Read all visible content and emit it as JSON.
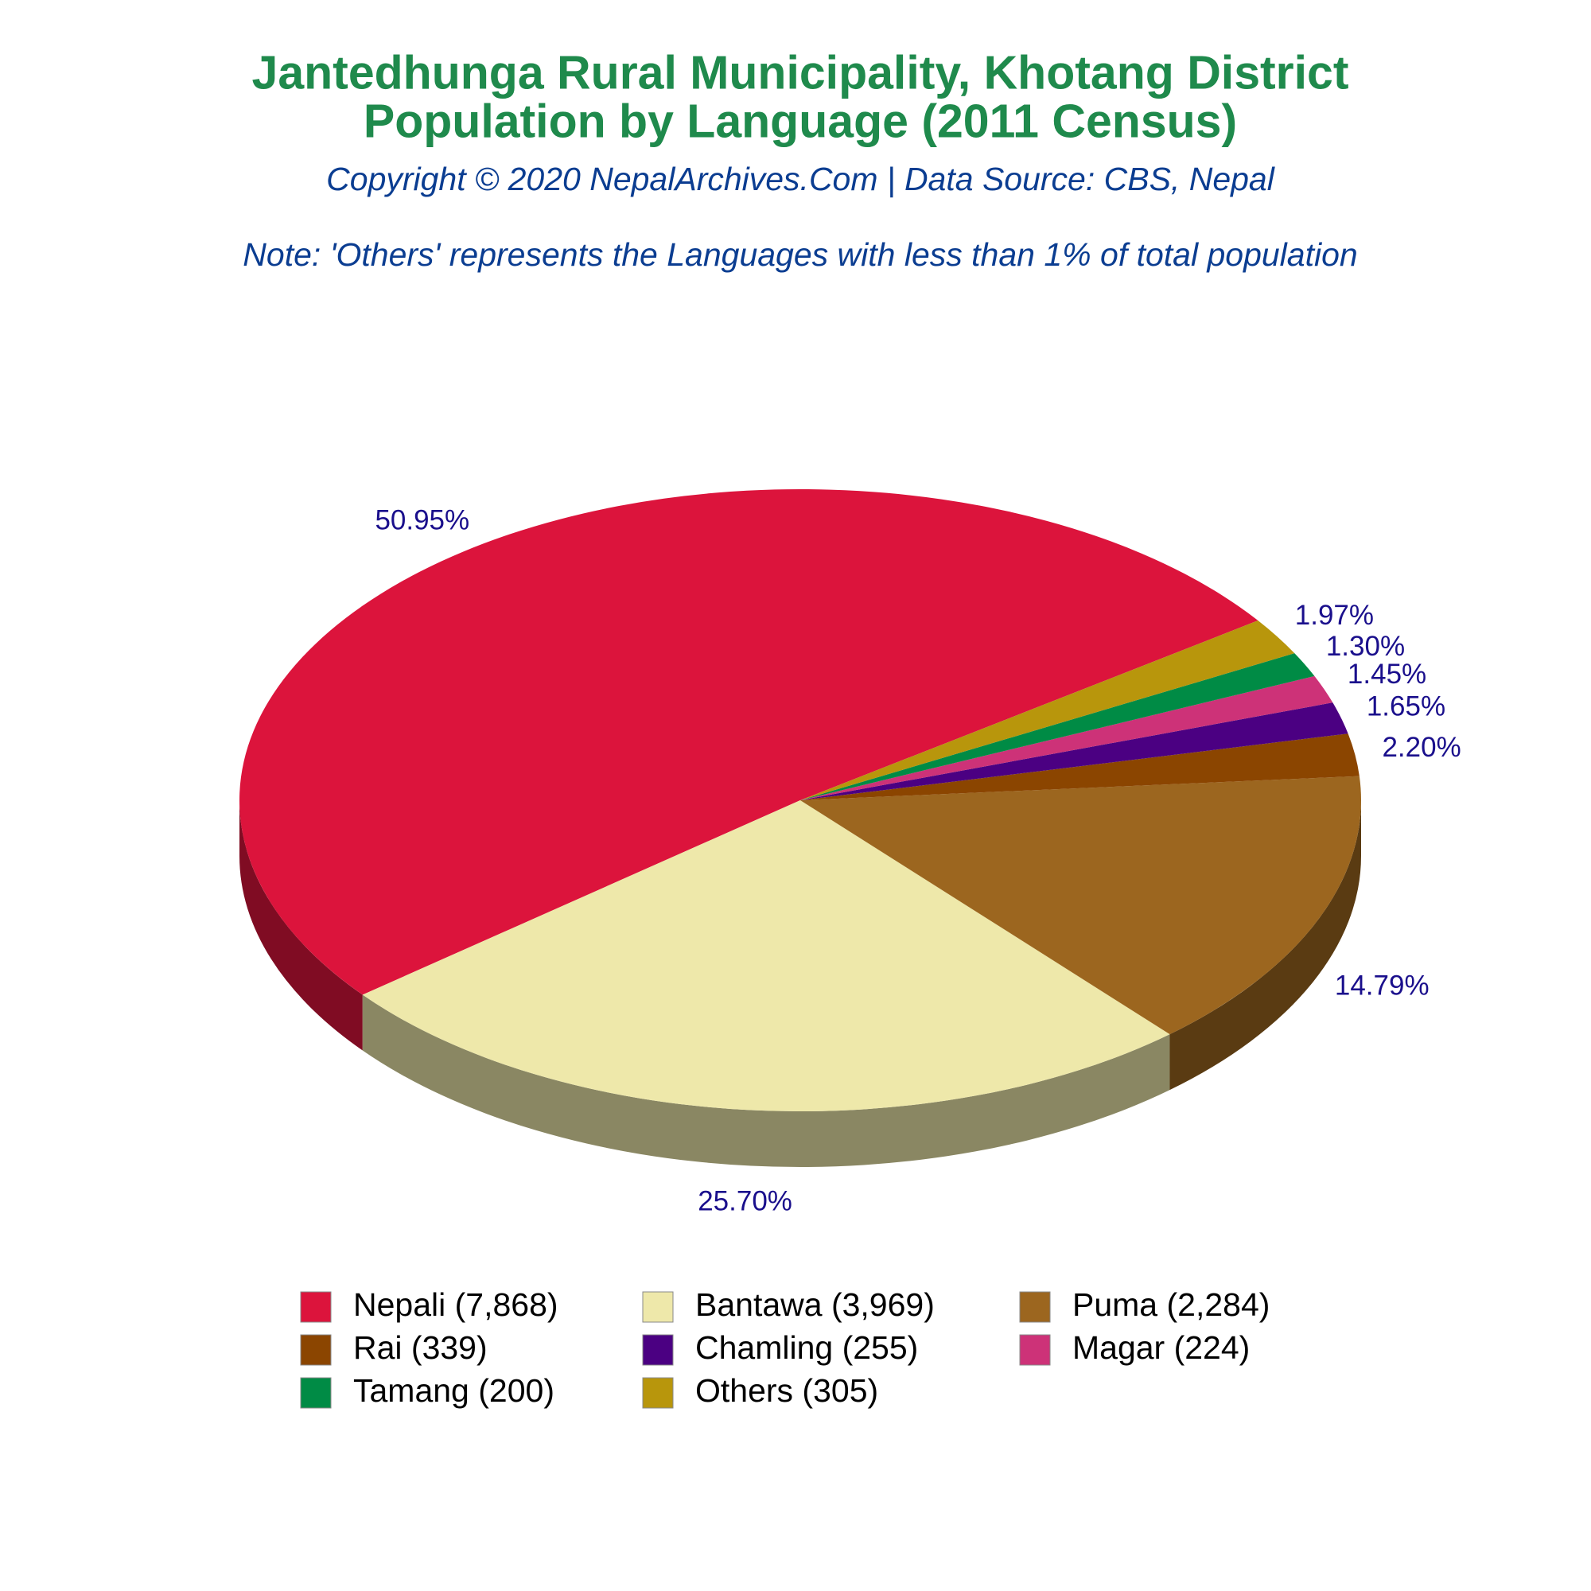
{
  "chart_data": {
    "type": "pie",
    "title": [
      "Jantedhunga Rural Municipality, Khotang District",
      "Population by Language (2011 Census)"
    ],
    "subtitle": "Copyright © 2020 NepalArchives.Com | Data Source: CBS, Nepal",
    "note": "Note: 'Others' represents the Languages with less than 1% of total population",
    "categories": [
      "Nepali (7,868)",
      "Bantawa (3,969)",
      "Puma (2,284)",
      "Rai (339)",
      "Chamling (255)",
      "Magar (224)",
      "Tamang (200)",
      "Others (305)"
    ],
    "values": [
      50.95,
      25.7,
      14.79,
      2.2,
      1.65,
      1.45,
      1.3,
      1.97
    ],
    "value_labels": [
      "50.95%",
      "25.70%",
      "14.79%",
      "2.20%",
      "1.65%",
      "1.45%",
      "1.30%",
      "1.97%"
    ],
    "colors": [
      "#DC143C",
      "#EEE8AA",
      "#9C661F",
      "#8B4500",
      "#4B0082",
      "#CD3278",
      "#008B45",
      "#B8960C"
    ]
  }
}
